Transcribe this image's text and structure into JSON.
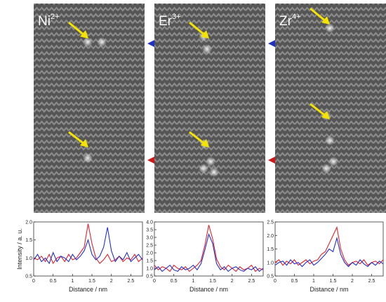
{
  "panels": [
    {
      "ion": "Ni",
      "charge": "2+"
    },
    {
      "ion": "Er",
      "charge": "3+"
    },
    {
      "ion": "Zr",
      "charge": "4+"
    }
  ],
  "chart_data": [
    {
      "type": "line",
      "x_label": "Distance / nm",
      "y_label": "Intensity / a. u.",
      "x": [
        0,
        0.1,
        0.2,
        0.3,
        0.4,
        0.5,
        0.6,
        0.7,
        0.8,
        0.9,
        1,
        1.1,
        1.2,
        1.3,
        1.4,
        1.5,
        1.6,
        1.7,
        1.8,
        1.9,
        2,
        2.1,
        2.2,
        2.3,
        2.4,
        2.5,
        2.6,
        2.7,
        2.8
      ],
      "xlim": [
        0,
        2.8
      ],
      "xticks": [
        0,
        0.5,
        1,
        1.5,
        2,
        2.5
      ],
      "ylim": [
        0.5,
        2.0
      ],
      "yticks": [
        0.5,
        {
          "value": 1,
          "label": "1.0"
        },
        1.5,
        {
          "value": 2,
          "label": "2.0"
        }
      ],
      "series": [
        {
          "color": "#e8202a",
          "values": [
            1.0,
            0.95,
            1.05,
            0.9,
            1.1,
            0.85,
            1.0,
            1.05,
            0.9,
            1.1,
            0.95,
            1.0,
            1.15,
            1.3,
            1.95,
            1.4,
            1.0,
            0.85,
            0.95,
            1.1,
            0.9,
            0.95,
            1.05,
            0.9,
            1.0,
            0.95,
            1.1,
            0.9,
            1.0
          ]
        },
        {
          "color": "#2030d0",
          "values": [
            0.95,
            1.1,
            0.9,
            1.0,
            0.85,
            1.15,
            0.9,
            1.05,
            1.0,
            0.9,
            1.1,
            0.95,
            1.05,
            1.2,
            1.5,
            1.1,
            0.95,
            1.05,
            1.3,
            1.85,
            1.2,
            0.9,
            1.05,
            0.95,
            1.15,
            0.9,
            1.0,
            1.1,
            0.95
          ]
        }
      ]
    },
    {
      "type": "line",
      "x_label": "Distance / nm",
      "x": [
        0,
        0.1,
        0.2,
        0.3,
        0.4,
        0.5,
        0.6,
        0.7,
        0.8,
        0.9,
        1,
        1.1,
        1.2,
        1.3,
        1.4,
        1.5,
        1.6,
        1.7,
        1.8,
        1.9,
        2,
        2.1,
        2.2,
        2.3,
        2.4,
        2.5,
        2.6,
        2.7,
        2.8
      ],
      "xlim": [
        0,
        2.8
      ],
      "xticks": [
        0,
        0.5,
        1,
        1.5,
        2,
        2.5
      ],
      "ylim": [
        0.5,
        4.0
      ],
      "yticks": [
        0.5,
        {
          "value": 1,
          "label": "1.0"
        },
        1.5,
        {
          "value": 2,
          "label": "2.0"
        },
        2.5,
        {
          "value": 3,
          "label": "3.0"
        },
        3.5,
        {
          "value": 4,
          "label": "4.0"
        }
      ],
      "series": [
        {
          "color": "#e8202a",
          "values": [
            1.2,
            0.9,
            1.1,
            1.0,
            0.8,
            1.2,
            1.0,
            0.9,
            1.1,
            0.8,
            1.0,
            1.2,
            1.5,
            2.5,
            3.8,
            2.9,
            1.6,
            1.1,
            0.9,
            1.2,
            1.0,
            0.8,
            1.1,
            0.9,
            1.0,
            1.2,
            0.8,
            1.0,
            0.9
          ]
        },
        {
          "color": "#2030d0",
          "values": [
            0.9,
            1.1,
            0.8,
            1.0,
            1.2,
            0.9,
            0.8,
            1.1,
            0.9,
            1.0,
            1.2,
            0.9,
            1.3,
            2.2,
            3.2,
            2.6,
            1.3,
            0.9,
            1.1,
            0.8,
            1.0,
            1.1,
            0.9,
            0.8,
            1.0,
            0.9,
            1.1,
            0.8,
            1.0
          ]
        }
      ]
    },
    {
      "type": "line",
      "x_label": "Distance / nm",
      "x": [
        0,
        0.1,
        0.2,
        0.3,
        0.4,
        0.5,
        0.6,
        0.7,
        0.8,
        0.9,
        1,
        1.1,
        1.2,
        1.3,
        1.4,
        1.5,
        1.6,
        1.7,
        1.8,
        1.9,
        2,
        2.1,
        2.2,
        2.3,
        2.4,
        2.5,
        2.6,
        2.7,
        2.8
      ],
      "xlim": [
        0,
        2.8
      ],
      "xticks": [
        0,
        0.5,
        1,
        1.5,
        2,
        2.5
      ],
      "ylim": [
        0.5,
        2.5
      ],
      "yticks": [
        0.5,
        {
          "value": 1,
          "label": "1.0"
        },
        1.5,
        {
          "value": 2,
          "label": "2.0"
        },
        2.5
      ],
      "series": [
        {
          "color": "#e8202a",
          "values": [
            1.0,
            1.1,
            0.9,
            1.05,
            0.95,
            1.1,
            0.9,
            1.0,
            1.1,
            0.95,
            1.05,
            1.1,
            1.3,
            1.4,
            1.7,
            2.0,
            2.3,
            1.5,
            1.1,
            0.9,
            1.0,
            1.05,
            0.95,
            1.1,
            0.9,
            1.0,
            1.05,
            0.95,
            1.1
          ]
        },
        {
          "color": "#2030d0",
          "values": [
            0.9,
            1.0,
            1.05,
            0.9,
            1.1,
            0.95,
            1.0,
            0.85,
            1.0,
            1.1,
            0.9,
            1.0,
            1.15,
            1.3,
            1.5,
            1.4,
            1.9,
            1.3,
            1.0,
            0.85,
            1.0,
            0.9,
            1.1,
            0.95,
            0.85,
            1.0,
            0.9,
            1.05,
            0.95
          ]
        }
      ]
    }
  ]
}
